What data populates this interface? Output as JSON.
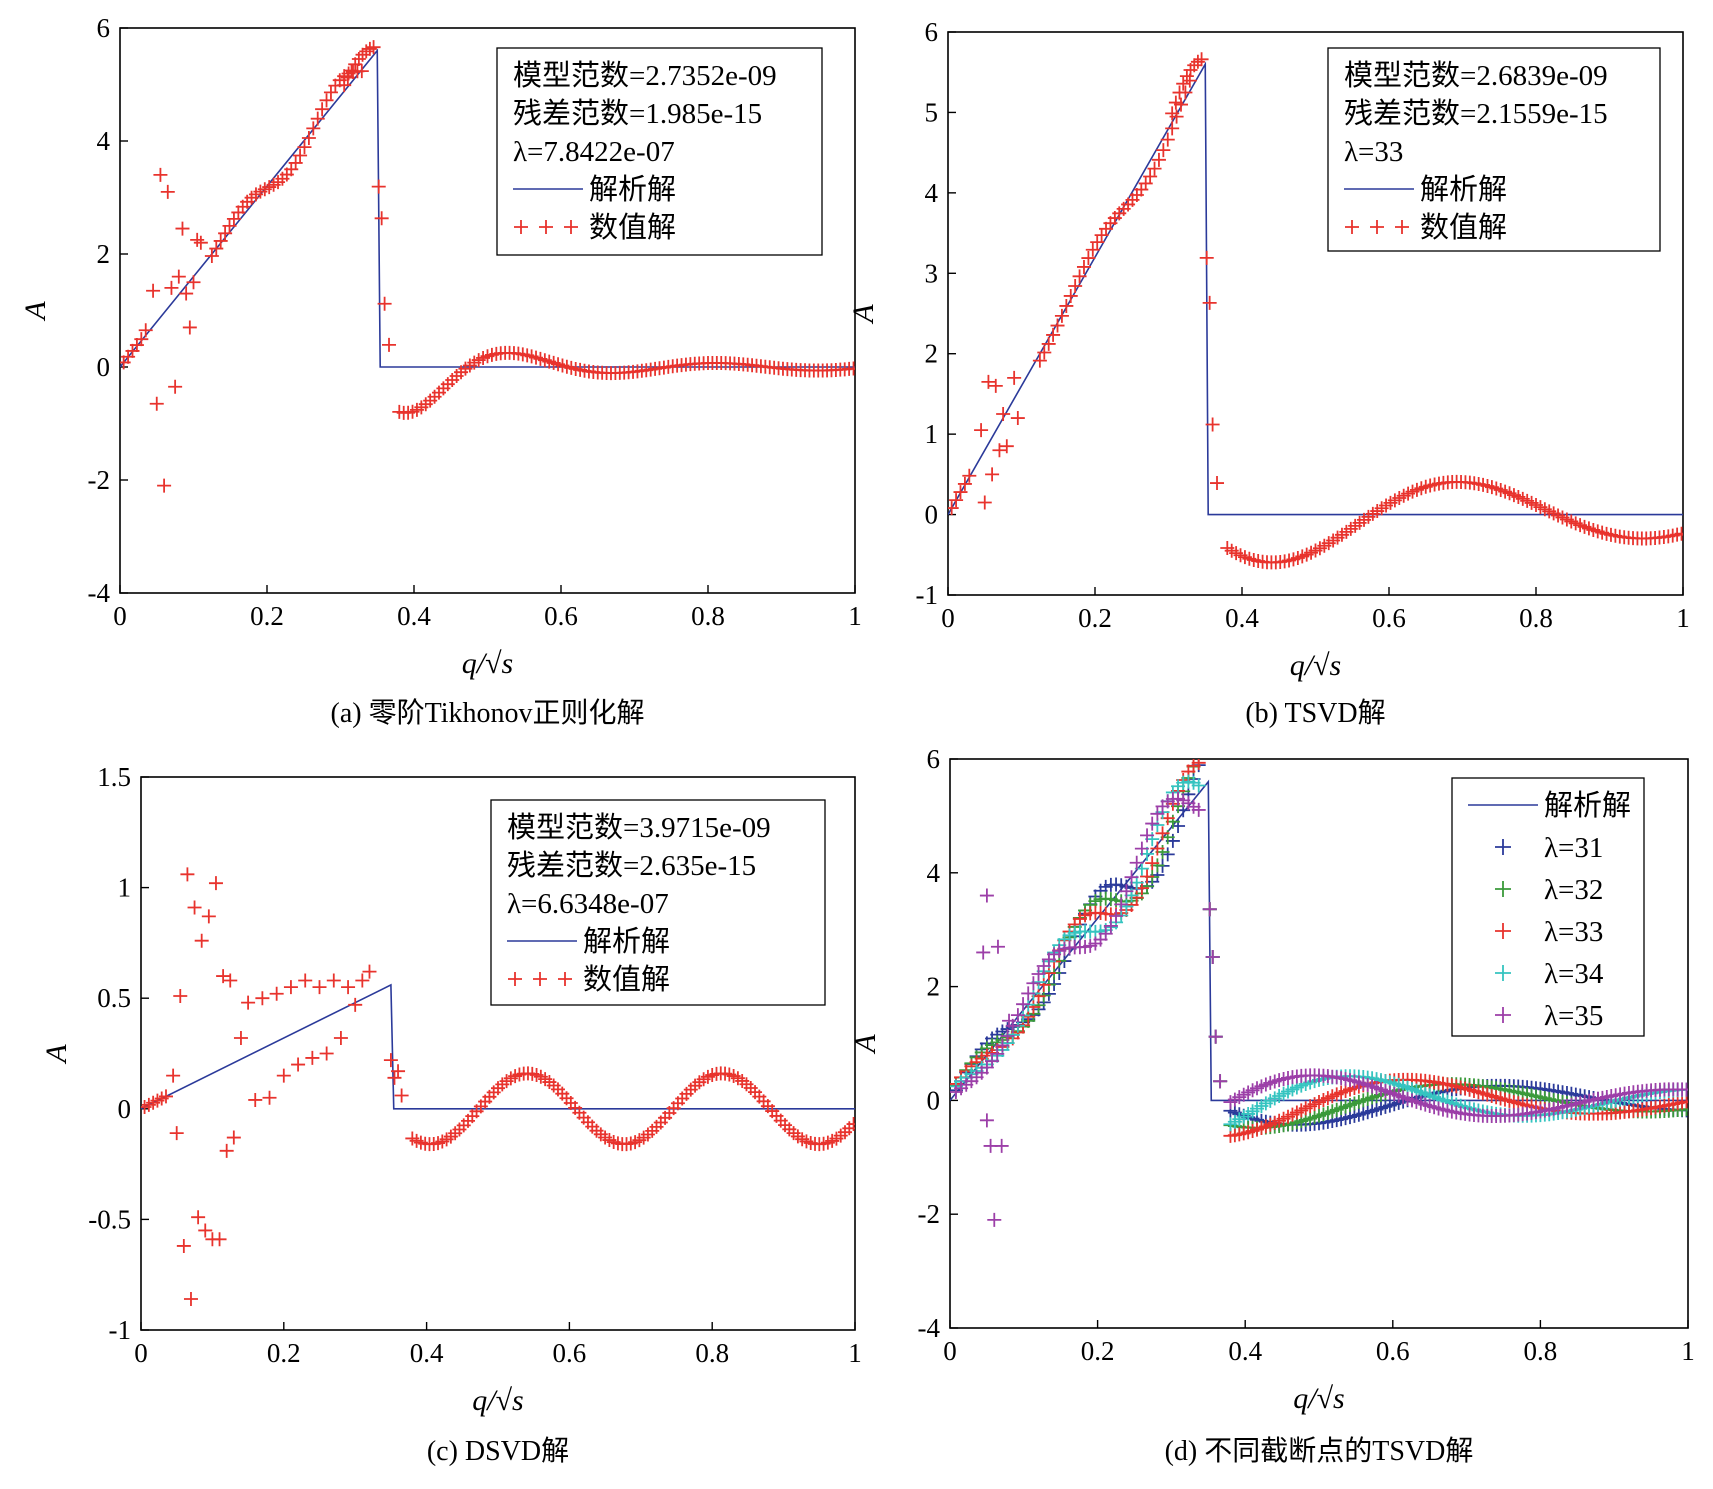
{
  "colors": {
    "analytic": "#2b3a9a",
    "numeric": "#e8332d",
    "lambda31": "#2b3a9a",
    "lambda32": "#3a9a3a",
    "lambda33": "#e8332d",
    "lambda34": "#35c4c0",
    "lambda35": "#9c3fa8"
  },
  "chart_data": [
    {
      "id": "a",
      "type": "line+scatter",
      "caption": "(a)  零阶Tikhonov正则化解",
      "xlabel": "q/√s",
      "ylabel": "A",
      "xlim": [
        0,
        1
      ],
      "ylim": [
        -4,
        6
      ],
      "xticks": [
        "0",
        "0.2",
        "0.4",
        "0.6",
        "0.8",
        "1"
      ],
      "yticks": [
        "-4",
        "-2",
        "0",
        "2",
        "4",
        "6"
      ],
      "legend_position": "top-right",
      "legend_lines": [
        "模型范数=2.7352e-09",
        "残差范数=1.985e-15",
        "λ=7.8422e-07"
      ],
      "analytic_step": {
        "slope": 16,
        "drop_at": 0.35,
        "label": "解析解"
      },
      "numeric": {
        "label": "数值解",
        "scatter": [
          [
            0.035,
            0.65
          ],
          [
            0.045,
            1.35
          ],
          [
            0.05,
            -0.65
          ],
          [
            0.055,
            3.4
          ],
          [
            0.06,
            -2.1
          ],
          [
            0.065,
            3.1
          ],
          [
            0.07,
            1.4
          ],
          [
            0.075,
            -0.35
          ],
          [
            0.08,
            1.6
          ],
          [
            0.085,
            2.45
          ],
          [
            0.09,
            1.3
          ],
          [
            0.095,
            0.7
          ],
          [
            0.1,
            1.5
          ],
          [
            0.105,
            2.25
          ],
          [
            0.11,
            2.2
          ]
        ],
        "osc": {
          "x0": 0.35,
          "amp0": 1.2,
          "decay": 10,
          "freq": 10.5,
          "tail": 0.06
        },
        "bumps": {
          "amp": 0.35,
          "freq": 48
        }
      }
    },
    {
      "id": "b",
      "type": "line+scatter",
      "caption": "(b)  TSVD解",
      "xlabel": "q/√s",
      "ylabel": "A",
      "xlim": [
        0,
        1
      ],
      "ylim": [
        -1,
        6
      ],
      "xticks": [
        "0",
        "0.2",
        "0.4",
        "0.6",
        "0.8",
        "1"
      ],
      "yticks": [
        "-1",
        "0",
        "1",
        "2",
        "3",
        "4",
        "5",
        "6"
      ],
      "legend_position": "top-right",
      "legend_lines": [
        "模型范数=2.6839e-09",
        "残差范数=2.1559e-15",
        "λ=33"
      ],
      "analytic_step": {
        "slope": 16,
        "drop_at": 0.35,
        "label": "解析解"
      },
      "numeric": {
        "label": "数值解",
        "scatter": [
          [
            0.045,
            1.05
          ],
          [
            0.05,
            0.15
          ],
          [
            0.055,
            1.65
          ],
          [
            0.06,
            0.5
          ],
          [
            0.065,
            1.6
          ],
          [
            0.07,
            0.8
          ],
          [
            0.075,
            1.25
          ],
          [
            0.08,
            0.85
          ],
          [
            0.09,
            1.7
          ],
          [
            0.095,
            1.2
          ]
        ],
        "osc": {
          "x0": 0.35,
          "amp0": 0.55,
          "decay": 2.2,
          "freq": 5.7,
          "tail": 0.15
        },
        "bumps": {
          "amp": 0.25,
          "freq": 40
        }
      }
    },
    {
      "id": "c",
      "type": "line+scatter",
      "caption": "(c)  DSVD解",
      "xlabel": "q/√s",
      "ylabel": "A",
      "xlim": [
        0,
        1
      ],
      "ylim": [
        -1,
        1.5
      ],
      "xticks": [
        "0",
        "0.2",
        "0.4",
        "0.6",
        "0.8",
        "1"
      ],
      "yticks": [
        "-1",
        "-0.5",
        "0",
        "0.5",
        "1",
        "1.5"
      ],
      "legend_position": "top-right",
      "legend_lines": [
        "模型范数=3.9715e-09",
        "残差范数=2.635e-15",
        "λ=6.6348e-07"
      ],
      "analytic_step": {
        "slope": 1.6,
        "drop_at": 0.35,
        "label": "解析解"
      },
      "numeric": {
        "label": "数值解",
        "scatter": [
          [
            0.045,
            0.15
          ],
          [
            0.05,
            -0.11
          ],
          [
            0.055,
            0.51
          ],
          [
            0.06,
            -0.62
          ],
          [
            0.065,
            1.06
          ],
          [
            0.07,
            -0.86
          ],
          [
            0.075,
            0.91
          ],
          [
            0.08,
            -0.49
          ],
          [
            0.085,
            0.76
          ],
          [
            0.09,
            -0.55
          ],
          [
            0.095,
            0.87
          ],
          [
            0.1,
            -0.59
          ],
          [
            0.105,
            1.02
          ],
          [
            0.11,
            -0.59
          ],
          [
            0.115,
            0.6
          ],
          [
            0.12,
            -0.19
          ],
          [
            0.125,
            0.58
          ],
          [
            0.13,
            -0.13
          ],
          [
            0.14,
            0.32
          ],
          [
            0.15,
            0.48
          ],
          [
            0.16,
            0.04
          ],
          [
            0.17,
            0.5
          ],
          [
            0.18,
            0.05
          ],
          [
            0.19,
            0.52
          ],
          [
            0.2,
            0.15
          ],
          [
            0.21,
            0.55
          ],
          [
            0.22,
            0.2
          ],
          [
            0.23,
            0.58
          ],
          [
            0.24,
            0.23
          ],
          [
            0.25,
            0.55
          ],
          [
            0.26,
            0.25
          ],
          [
            0.27,
            0.58
          ],
          [
            0.28,
            0.32
          ],
          [
            0.29,
            0.55
          ],
          [
            0.3,
            0.47
          ],
          [
            0.31,
            0.58
          ],
          [
            0.32,
            0.62
          ]
        ],
        "osc": {
          "x0": 0.35,
          "amp0": 0.08,
          "decay": 0,
          "freq": 10.5,
          "tail": 0.08
        },
        "bumps": {
          "amp": 0.0,
          "freq": 40
        }
      }
    },
    {
      "id": "d",
      "type": "line+scatter",
      "caption": "(d)  不同截断点的TSVD解",
      "xlabel": "q/√s",
      "ylabel": "A",
      "xlim": [
        0,
        1
      ],
      "ylim": [
        -4,
        6
      ],
      "xticks": [
        "0",
        "0.2",
        "0.4",
        "0.6",
        "0.8",
        "1"
      ],
      "yticks": [
        "-4",
        "-2",
        "0",
        "2",
        "4",
        "6"
      ],
      "legend_position": "top-right",
      "analytic_step": {
        "slope": 16,
        "drop_at": 0.35,
        "label": "解析解"
      },
      "series": [
        {
          "name": "λ=31",
          "color_key": "lambda31",
          "phase": 0.0,
          "freq": 5.3,
          "amp": 0.45
        },
        {
          "name": "λ=32",
          "color_key": "lambda32",
          "phase": 0.6,
          "freq": 5.5,
          "amp": 0.45
        },
        {
          "name": "λ=33",
          "color_key": "lambda33",
          "phase": 1.2,
          "freq": 5.7,
          "amp": 0.55
        },
        {
          "name": "λ=34",
          "color_key": "lambda34",
          "phase": 2.0,
          "freq": 6.1,
          "amp": 0.55
        },
        {
          "name": "λ=35",
          "color_key": "lambda35",
          "phase": 2.7,
          "freq": 5.9,
          "amp": 0.5
        }
      ],
      "scatter_outliers": [
        [
          0.05,
          3.6
        ],
        [
          0.055,
          -0.8
        ],
        [
          0.06,
          -2.1
        ],
        [
          0.065,
          2.7
        ],
        [
          0.07,
          -0.8
        ],
        [
          0.045,
          2.6
        ],
        [
          0.05,
          -0.35
        ],
        [
          0.08,
          1.4
        ]
      ]
    }
  ]
}
